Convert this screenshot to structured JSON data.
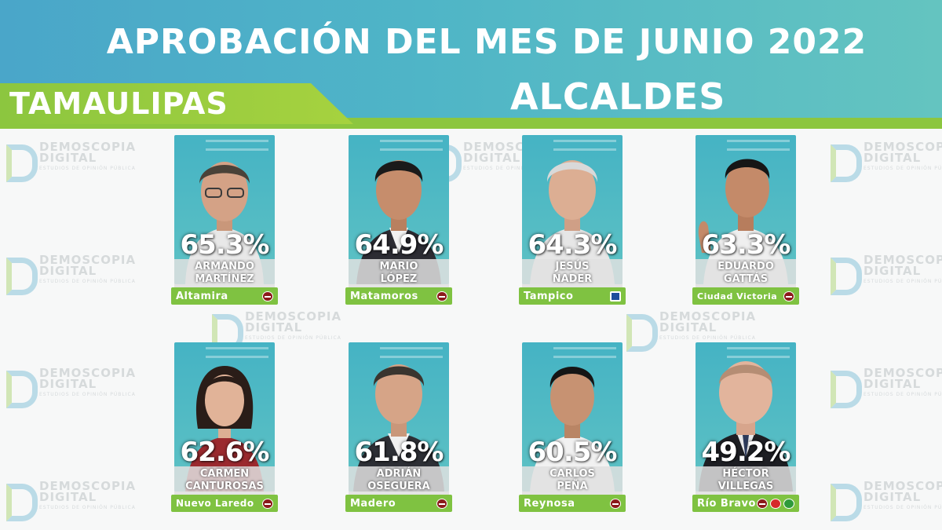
{
  "header": {
    "title": "APROBACIÓN DEL MES DE JUNIO 2022",
    "subtitle": "ALCALDES",
    "state": "TAMAULIPAS"
  },
  "watermark": {
    "line1": "DEMOSCOPIA",
    "line2": "DIGITAL",
    "line3": "ESTUDIOS DE OPINIÓN PÚBLICA"
  },
  "colors": {
    "banner_blue": "#4aa6c9",
    "accent_green": "#8cc63f",
    "photo_teal": "#4fb9c5"
  },
  "mayors": [
    {
      "percent": "65.3%",
      "name_line1": "ARMANDO",
      "name_line2": "MARTÍNEZ",
      "city": "Altamira",
      "parties": [
        "morena-logo"
      ]
    },
    {
      "percent": "64.9%",
      "name_line1": "MARIO",
      "name_line2": "LÓPEZ",
      "city": "Matamoros",
      "parties": [
        "morena-logo"
      ]
    },
    {
      "percent": "64.3%",
      "name_line1": "JESÚS",
      "name_line2": "NADER",
      "city": "Tampico",
      "parties": [
        "pan-logo"
      ]
    },
    {
      "percent": "63.3%",
      "name_line1": "EDUARDO",
      "name_line2": "GATTÁS",
      "city": "Ciudad Victoria",
      "parties": [
        "morena-logo"
      ]
    },
    {
      "percent": "62.6%",
      "name_line1": "CARMEN",
      "name_line2": "CANTUROSAS",
      "city": "Nuevo Laredo",
      "parties": [
        "morena-logo"
      ]
    },
    {
      "percent": "61.8%",
      "name_line1": "ADRIÁN",
      "name_line2": "OSEGUERA",
      "city": "Madero",
      "parties": [
        "morena-logo"
      ]
    },
    {
      "percent": "60.5%",
      "name_line1": "CARLOS",
      "name_line2": "PEÑA",
      "city": "Reynosa",
      "parties": [
        "morena-logo"
      ]
    },
    {
      "percent": "49.2%",
      "name_line1": "HÉCTOR",
      "name_line2": "VILLEGAS",
      "city": "Río Bravo",
      "parties": [
        "morena-logo",
        "pt-logo",
        "pvem-logo"
      ]
    }
  ]
}
